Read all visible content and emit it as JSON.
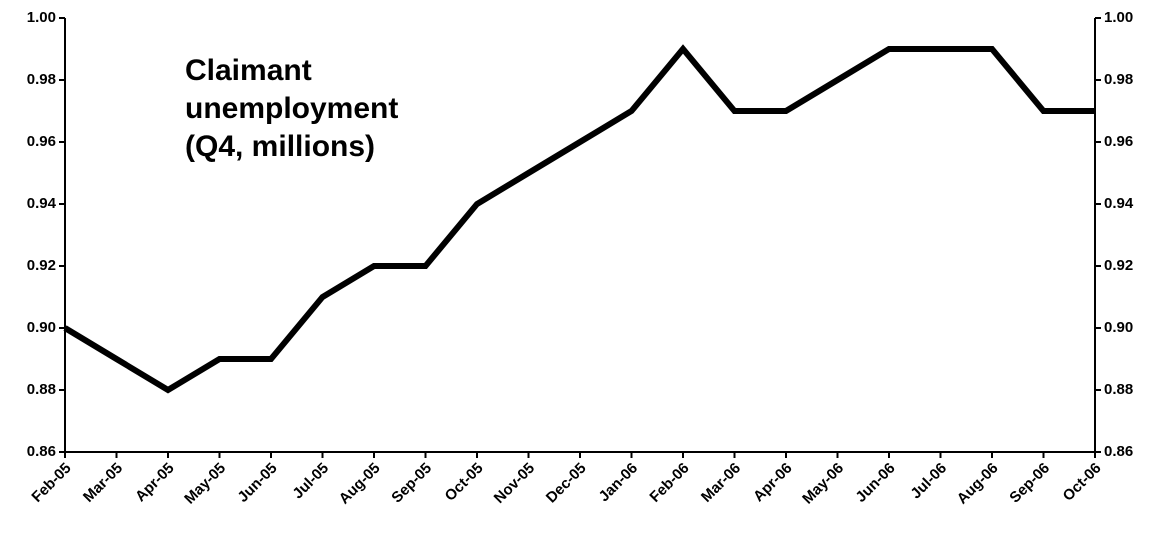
{
  "chart_data": {
    "type": "line",
    "annotation": [
      "Claimant",
      "unemployment",
      "(Q4, millions)"
    ],
    "categories": [
      "Feb-05",
      "Mar-05",
      "Apr-05",
      "May-05",
      "Jun-05",
      "Jul-05",
      "Aug-05",
      "Sep-05",
      "Oct-05",
      "Nov-05",
      "Dec-05",
      "Jan-06",
      "Feb-06",
      "Mar-06",
      "Apr-06",
      "May-06",
      "Jun-06",
      "Jul-06",
      "Aug-06",
      "Sep-06",
      "Oct-06"
    ],
    "series": [
      {
        "color": "#000000",
        "values": [
          0.9,
          0.89,
          0.88,
          0.89,
          0.89,
          0.91,
          0.92,
          0.92,
          0.94,
          0.95,
          0.96,
          0.97,
          0.99,
          0.97,
          0.97,
          0.98,
          0.99,
          0.99,
          0.99,
          0.97,
          0.97
        ]
      }
    ],
    "ylim": [
      0.86,
      1.0
    ],
    "yticks": [
      0.86,
      0.88,
      {
        "value": 0.9,
        "label": "0.90"
      },
      0.92,
      0.94,
      0.96,
      0.98,
      {
        "value": 1.0,
        "label": "1.00"
      }
    ],
    "y2lim": [
      0.86,
      1.0
    ],
    "y2ticks": [
      0.86,
      0.88,
      {
        "value": 0.9,
        "label": "0.90"
      },
      0.92,
      0.94,
      0.96,
      0.98,
      {
        "value": 1.0,
        "label": "1.00"
      }
    ],
    "grid": false
  }
}
